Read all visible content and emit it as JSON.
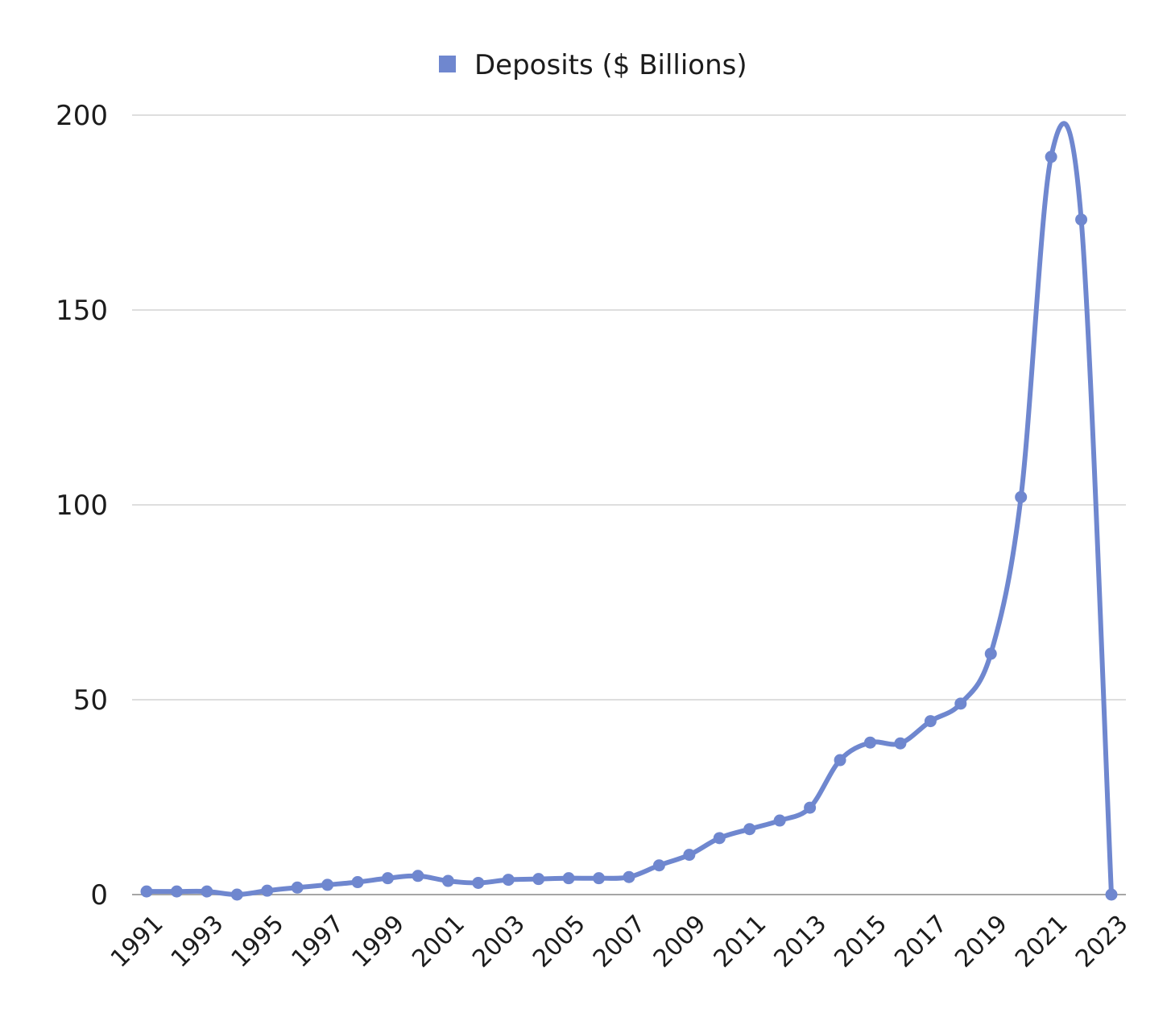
{
  "chart_data": {
    "type": "line",
    "smooth": true,
    "markers": true,
    "legend_position": "top-center",
    "grid": true,
    "ylim": [
      0,
      200
    ],
    "y_ticks": [
      "0",
      "50",
      "100",
      "150",
      "200"
    ],
    "y_tick_values": [
      0,
      50,
      100,
      150,
      200
    ],
    "x_tick_labels": [
      "1991",
      "1993",
      "1995",
      "1997",
      "1999",
      "2001",
      "2003",
      "2005",
      "2007",
      "2009",
      "2011",
      "2013",
      "2015",
      "2017",
      "2019",
      "2021",
      "2023"
    ],
    "x": [
      1991,
      1992,
      1993,
      1994,
      1995,
      1996,
      1997,
      1998,
      1999,
      2000,
      2001,
      2002,
      2003,
      2004,
      2005,
      2006,
      2007,
      2008,
      2009,
      2010,
      2011,
      2012,
      2013,
      2014,
      2015,
      2016,
      2017,
      2018,
      2019,
      2020,
      2021,
      2022,
      2023
    ],
    "series": [
      {
        "name": "Deposits ($ Billions)",
        "color": "#6f87cf",
        "values": [
          0.8,
          0.8,
          0.8,
          0,
          1.0,
          1.8,
          2.5,
          3.2,
          4.2,
          4.8,
          3.5,
          3.0,
          3.8,
          4.0,
          4.2,
          4.2,
          4.5,
          7.5,
          10.2,
          14.5,
          16.8,
          19.0,
          22.3,
          34.5,
          39.0,
          38.8,
          44.5,
          49.0,
          61.8,
          102.0,
          189.3,
          173.2,
          0
        ]
      }
    ]
  }
}
